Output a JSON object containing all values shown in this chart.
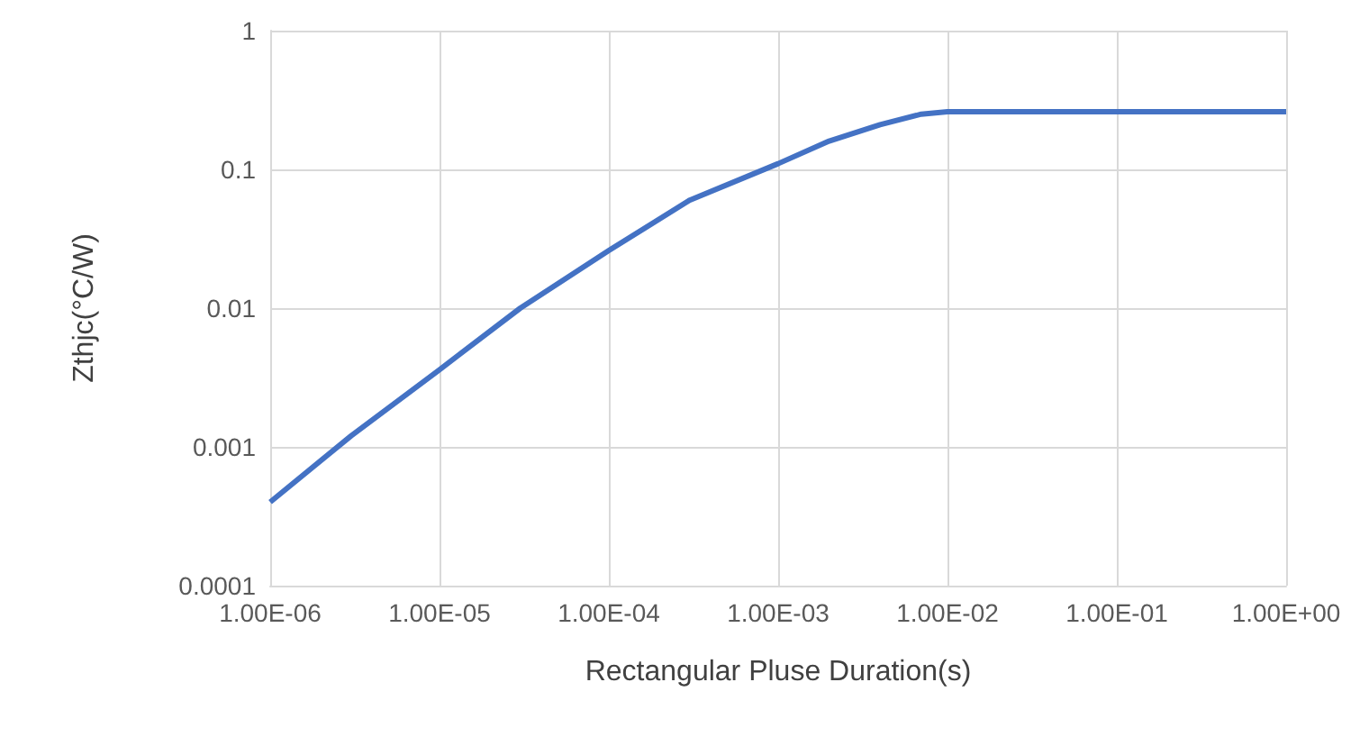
{
  "chart_data": {
    "type": "line",
    "xlabel": "Rectangular Pluse Duration(s)",
    "ylabel": "Zthjc(°C/W)",
    "log": "xy",
    "grid": true,
    "marker": "none",
    "line_style": "solid",
    "x": [
      1e-06,
      3e-06,
      1e-05,
      3e-05,
      0.0001,
      0.0003,
      0.001,
      0.002,
      0.004,
      0.007,
      0.01,
      0.1,
      1
    ],
    "series": [
      {
        "color": "#4472c4",
        "values": [
          0.0004,
          0.0012,
          0.0036,
          0.01,
          0.026,
          0.06,
          0.11,
          0.16,
          0.21,
          0.25,
          0.26,
          0.26,
          0.26
        ]
      }
    ],
    "xlim": [
      1e-06,
      1
    ],
    "xticks": [
      {
        "value": 1e-06,
        "label": "1.00E-06"
      },
      {
        "value": 1e-05,
        "label": "1.00E-05"
      },
      {
        "value": 0.0001,
        "label": "1.00E-04"
      },
      {
        "value": 0.001,
        "label": "1.00E-03"
      },
      {
        "value": 0.01,
        "label": "1.00E-02"
      },
      {
        "value": 0.1,
        "label": "1.00E-01"
      },
      {
        "value": 1,
        "label": "1.00E+00"
      }
    ],
    "ylim": [
      0.0001,
      1
    ],
    "yticks": [
      0.0001,
      0.001,
      0.01,
      0.1,
      1
    ]
  }
}
